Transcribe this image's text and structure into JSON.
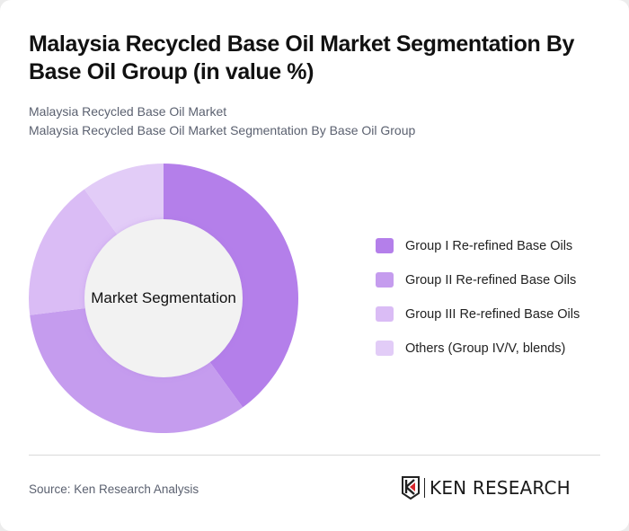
{
  "header": {
    "title": "Malaysia Recycled Base Oil Market Segmentation By Base Oil Group (in value %)",
    "subtitle_line1": "Malaysia Recycled Base Oil Market",
    "subtitle_line2": "Malaysia Recycled Base Oil Market Segmentation By Base Oil Group"
  },
  "chart": {
    "center_label": "Market Segmentation"
  },
  "legend": [
    {
      "label": "Group I Re-refined Base Oils",
      "color": "#b47fea"
    },
    {
      "label": "Group II Re-refined Base Oils",
      "color": "#c59cee"
    },
    {
      "label": "Group III Re-refined Base Oils",
      "color": "#dabcf5"
    },
    {
      "label": "Others (Group IV/V, blends)",
      "color": "#e2ccf7"
    }
  ],
  "footer": {
    "source": "Source: Ken Research Analysis",
    "logo_text": "KEN RESEARCH"
  },
  "chart_data": {
    "type": "pie",
    "subtype": "donut",
    "title": "Malaysia Recycled Base Oil Market Segmentation By Base Oil Group (in value %)",
    "center_label": "Market Segmentation",
    "categories": [
      "Group I Re-refined Base Oils",
      "Group II Re-refined Base Oils",
      "Group III Re-refined Base Oils",
      "Others (Group IV/V, blends)"
    ],
    "values": [
      40,
      33,
      17,
      10
    ],
    "colors": [
      "#b47fea",
      "#c59cee",
      "#dabcf5",
      "#e2ccf7"
    ],
    "unit": "%",
    "legend_position": "right"
  }
}
